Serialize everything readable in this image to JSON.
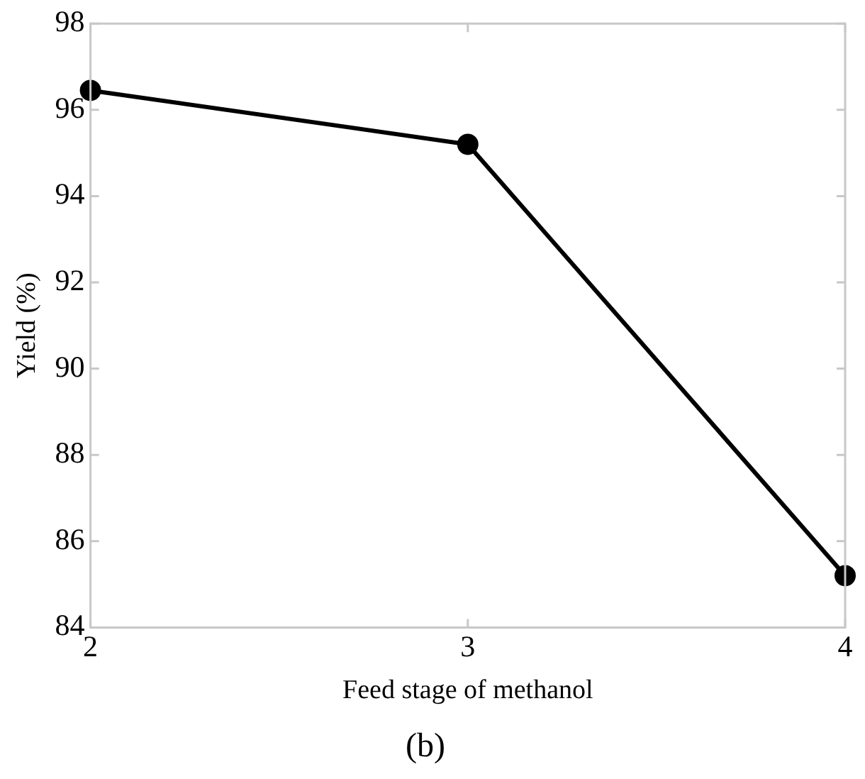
{
  "chart_data": {
    "type": "line",
    "title": "(b)",
    "xlabel": "Feed stage of methanol",
    "ylabel": "Yield (%)",
    "x": [
      2,
      3,
      4
    ],
    "series": [
      {
        "color": "#000000",
        "values": [
          96.45,
          95.2,
          85.2
        ]
      }
    ],
    "xlim": [
      2,
      4
    ],
    "xticks": [
      2,
      3,
      4
    ],
    "ylim": [
      84,
      98
    ],
    "yticks": [
      84,
      86,
      88,
      90,
      92,
      94,
      96,
      98
    ],
    "grid": false,
    "legend": false,
    "marker": "circle",
    "line_style": "solid"
  }
}
